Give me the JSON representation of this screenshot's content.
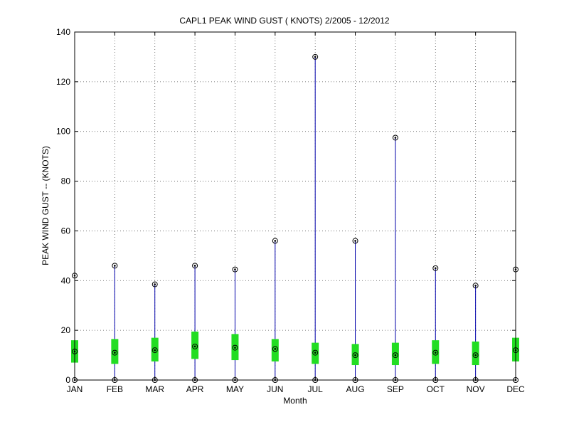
{
  "chart_data": {
    "type": "box",
    "title": "CAPL1  PEAK WIND GUST ( KNOTS) 2/2005 - 12/2012",
    "xlabel": "Month",
    "ylabel": "PEAK WIND GUST -- (KNOTS)",
    "ylim": [
      0,
      140
    ],
    "yticks": [
      0,
      20,
      40,
      60,
      80,
      100,
      120,
      140
    ],
    "grid": true,
    "categories": [
      "JAN",
      "FEB",
      "MAR",
      "APR",
      "MAY",
      "JUN",
      "JUL",
      "AUG",
      "SEP",
      "OCT",
      "NOV",
      "DEC"
    ],
    "series": [
      {
        "min": [
          0,
          0,
          0,
          0,
          0,
          0,
          0,
          0,
          0,
          0,
          0,
          0
        ],
        "q1": [
          7,
          6.5,
          7.5,
          8.5,
          8,
          7.5,
          6.5,
          6,
          6,
          6.5,
          6,
          7.5
        ],
        "median": [
          11.5,
          11,
          12,
          13.5,
          13,
          12.5,
          11,
          10,
          10,
          11,
          10,
          12
        ],
        "q3": [
          16,
          16.5,
          17,
          19.5,
          18.5,
          16.5,
          15,
          14.5,
          15,
          16,
          15.5,
          17
        ],
        "max": [
          42,
          46,
          38.5,
          46,
          44.5,
          56,
          130,
          56,
          97.5,
          45,
          38,
          44.5
        ]
      }
    ],
    "colors": {
      "whisker": "#0000aa",
      "box": "#22dd22",
      "marker": "#000000",
      "grid": "#555555"
    }
  }
}
